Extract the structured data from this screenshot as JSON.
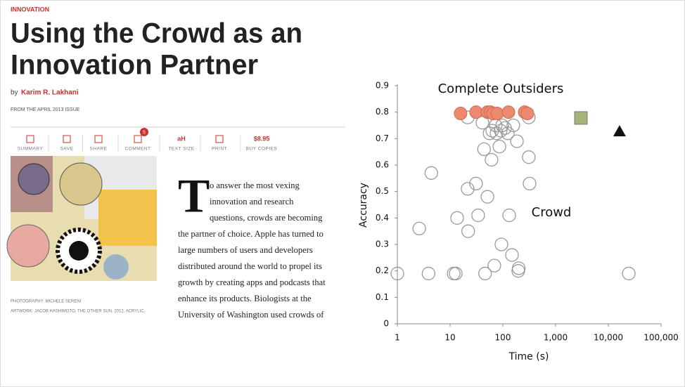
{
  "article": {
    "section": "INNOVATION",
    "title_lines": [
      "Using the Crowd as an",
      "Innovation Partner"
    ],
    "byline_prefix": "by",
    "author": "Karim R. Lakhani",
    "issue": "FROM THE APRIL 2013 ISSUE",
    "toolbar": [
      "SUMMARY",
      "SAVE",
      "SHARE",
      "COMMENT",
      "TEXT SIZE",
      "PRINT",
      "BUY COPIES"
    ],
    "comment_count": "5",
    "price": "$8.95",
    "text_size_icon": "aH",
    "caption_lines": [
      "PHOTOGRAPHY: MICHELE SERENI",
      "ARTWORK: JACOB HASHIMOTO, THE OTHER SUN, 2012, ACRYLIC,"
    ],
    "drop_cap": "T",
    "body_lines": [
      "o answer the most vexing",
      "innovation and research",
      "questions, crowds are becoming",
      "the partner of choice. Apple has turned to",
      "large numbers of users and developers",
      "distributed around the world to propel its",
      "growth by creating apps and podcasts that",
      "enhance its products. Biologists at the",
      "University of Washington used crowds of"
    ]
  },
  "chart_data": {
    "type": "scatter",
    "xlabel": "Time (s)",
    "ylabel": "Accuracy",
    "xscale": "log",
    "xlim": [
      1,
      100000
    ],
    "ylim": [
      0,
      0.9
    ],
    "xticks": [
      1,
      10,
      100,
      {
        "value": 1000,
        "label": "1,000"
      },
      {
        "value": 10000,
        "label": "10,000"
      },
      {
        "value": 100000,
        "label": "100,000"
      }
    ],
    "yticks": [
      0,
      0.1,
      0.2,
      0.3,
      0.4,
      0.5,
      0.6,
      0.7,
      0.8,
      0.9
    ],
    "grid": false,
    "annotations": [
      "Complete Outsiders",
      "Crowd"
    ],
    "series": [
      {
        "marker": "hollow-circle",
        "color": "#9a9a9a",
        "x": [
          1,
          3.9,
          11.7,
          12.8,
          46,
          69,
          196,
          200,
          24400,
          2.6,
          4.4,
          13.6,
          34,
          22,
          21.5,
          31,
          51,
          132,
          94,
          149,
          321,
          310,
          61,
          44,
          185,
          86,
          21.5,
          41,
          63,
          76,
          91,
          110,
          124,
          97,
          158,
          310,
          73,
          56
        ],
        "values": [
          0.19,
          0.19,
          0.19,
          0.19,
          0.19,
          0.22,
          0.2,
          0.21,
          0.19,
          0.36,
          0.57,
          0.4,
          0.41,
          0.35,
          0.51,
          0.53,
          0.48,
          0.41,
          0.3,
          0.26,
          0.53,
          0.63,
          0.62,
          0.66,
          0.69,
          0.67,
          0.78,
          0.76,
          0.73,
          0.72,
          0.73,
          0.74,
          0.72,
          0.75,
          0.75,
          0.78,
          0.75,
          0.72
        ]
      },
      {
        "marker": "circle",
        "color": "#ec8a70",
        "x": [
          15.8,
          31,
          51,
          58,
          65,
          78,
          128,
          259,
          293
        ],
        "values": [
          0.795,
          0.8,
          0.8,
          0.8,
          0.795,
          0.795,
          0.8,
          0.8,
          0.795
        ]
      },
      {
        "marker": "square",
        "color": "#a4b47a",
        "x": [
          3020
        ],
        "values": [
          0.778
        ]
      },
      {
        "marker": "triangle",
        "color": "#111111",
        "x": [
          16300
        ],
        "values": [
          0.727
        ]
      }
    ]
  }
}
